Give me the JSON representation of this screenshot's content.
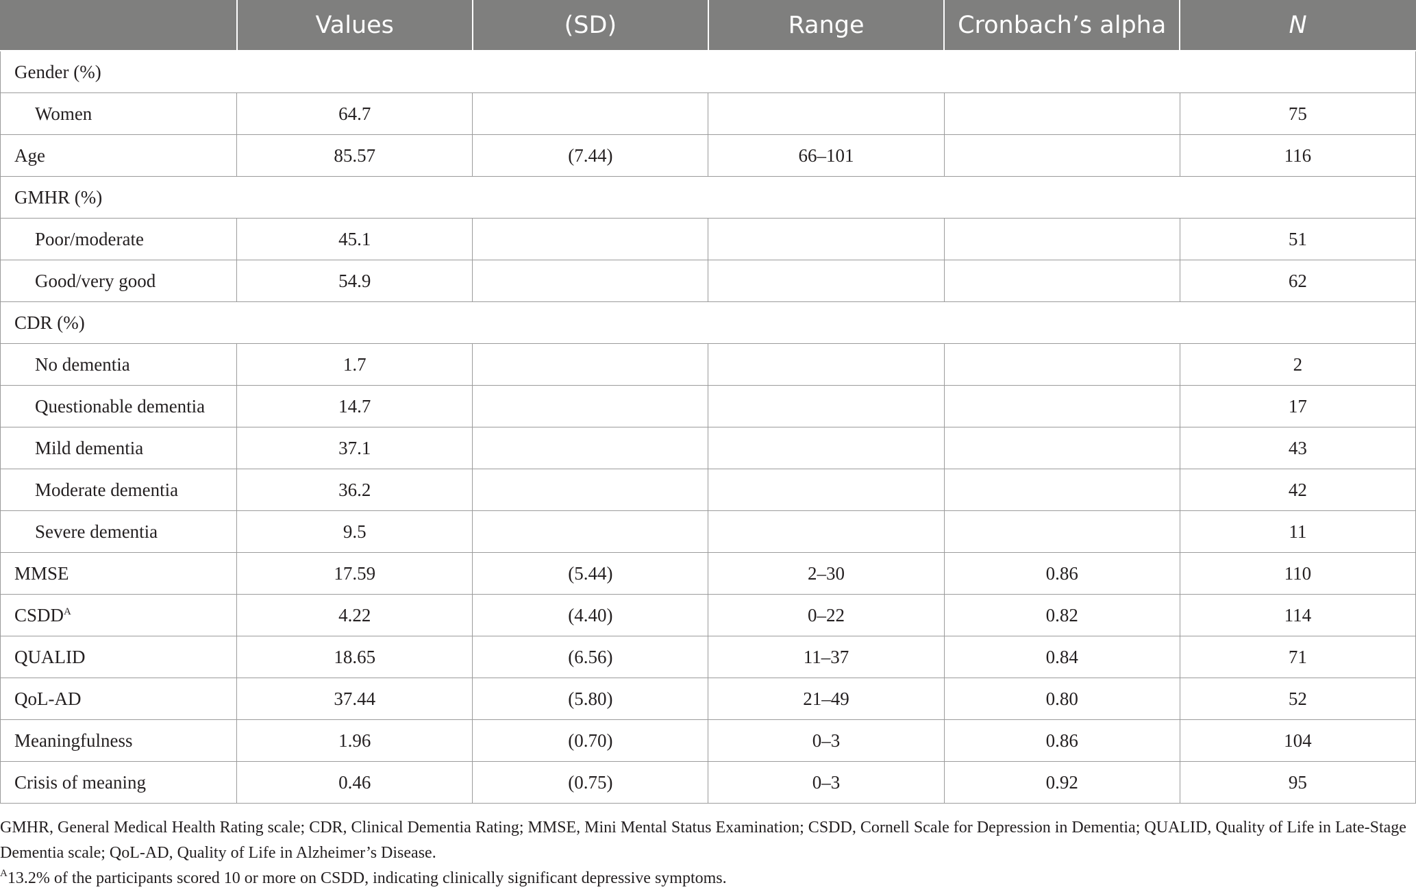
{
  "header": [
    "",
    "Values",
    "(SD)",
    "Range",
    "Cronbach’s alpha",
    "N"
  ],
  "rows": {
    "gender": [
      "Gender (%)"
    ],
    "women": [
      "Women",
      "64.7",
      "",
      "",
      "",
      "75"
    ],
    "age": [
      "Age",
      "85.57",
      "(7.44)",
      "66–101",
      "",
      "116"
    ],
    "gmhr": [
      "GMHR (%)"
    ],
    "poor": [
      "Poor/moderate",
      "45.1",
      "",
      "",
      "",
      "51"
    ],
    "good": [
      "Good/very good",
      "54.9",
      "",
      "",
      "",
      "62"
    ],
    "cdr": [
      "CDR (%)"
    ],
    "nodem": [
      "No dementia",
      "1.7",
      "",
      "",
      "",
      "2"
    ],
    "quest": [
      "Questionable dementia",
      "14.7",
      "",
      "",
      "",
      "17"
    ],
    "mild": [
      "Mild dementia",
      "37.1",
      "",
      "",
      "",
      "43"
    ],
    "moderate": [
      "Moderate dementia",
      "36.2",
      "",
      "",
      "",
      "42"
    ],
    "severe": [
      "Severe dementia",
      "9.5",
      "",
      "",
      "",
      "11"
    ],
    "mmse": [
      "MMSE",
      "17.59",
      "(5.44)",
      "2–30",
      "0.86",
      "110"
    ],
    "csdd": [
      "CSDD",
      "4.22",
      "(4.40)",
      "0–22",
      "0.82",
      "114"
    ],
    "qualid": [
      "QUALID",
      "18.65",
      "(6.56)",
      "11–37",
      "0.84",
      "71"
    ],
    "qolad": [
      "QoL-AD",
      "37.44",
      "(5.80)",
      "21–49",
      "0.80",
      "52"
    ],
    "meaning": [
      "Meaningfulness",
      "1.96",
      "(0.70)",
      "0–3",
      "0.86",
      "104"
    ],
    "crisis": [
      "Crisis of meaning",
      "0.46",
      "(0.75)",
      "0–3",
      "0.92",
      "95"
    ]
  },
  "csdd_sup": "A",
  "notes": {
    "abbreviations": "GMHR, General Medical Health Rating scale; CDR, Clinical Dementia Rating; MMSE, Mini Mental Status Examination; CSDD, Cornell Scale for Depression in Dementia; QUALID, Quality of Life in Late-Stage Dementia scale; QoL-AD, Quality of Life in Alzheimer’s Disease.",
    "footnote_mark": "A",
    "footnote_text": "13.2% of the participants scored 10 or more on CSDD, indicating clinically significant depressive symptoms."
  }
}
